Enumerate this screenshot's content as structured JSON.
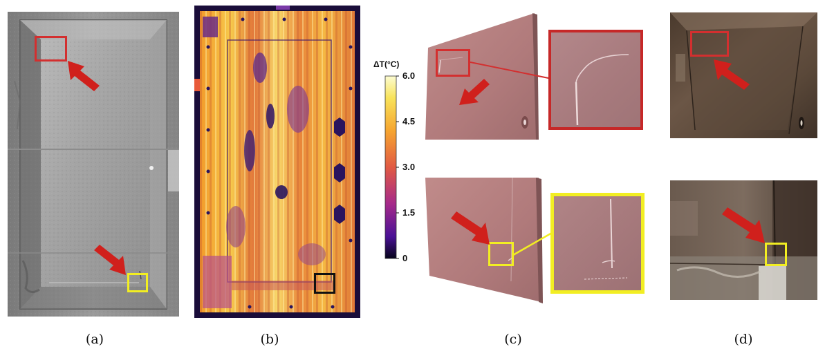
{
  "captions": {
    "a": "(a)",
    "b": "(b)",
    "c": "(c)",
    "d": "(d)"
  },
  "colorbar": {
    "title": "ΔT(°C)",
    "ticks": [
      "6.0",
      "4.5",
      "3.0",
      "1.5",
      "0"
    ]
  },
  "colors": {
    "highlight_red": "#d32f2f",
    "highlight_yellow": "#f2ee22",
    "highlight_black": "#111111",
    "arrow_red": "#d0201c"
  },
  "panels": [
    {
      "id": "a",
      "kind": "grayscale surface scan of a panel"
    },
    {
      "id": "b",
      "kind": "thermal image"
    },
    {
      "id": "c",
      "kind": "3D surface renders with zoom insets"
    },
    {
      "id": "d",
      "kind": "photographs"
    }
  ]
}
